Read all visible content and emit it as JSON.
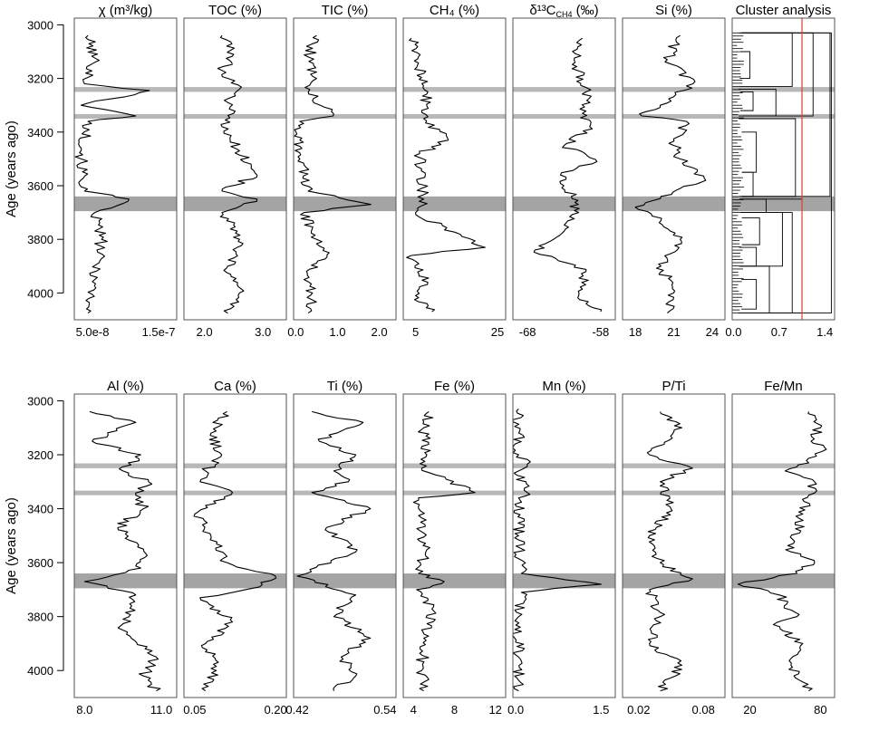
{
  "figure": {
    "ylabel": "Age (years ago)",
    "y_ticks": [
      3000,
      3200,
      3400,
      3600,
      3800,
      4000
    ],
    "ylim": [
      2975,
      4100
    ],
    "y_reversed": true,
    "highlight_bands": [
      {
        "from": 3232,
        "to": 3250,
        "color": "#b8b8b8"
      },
      {
        "from": 3333,
        "to": 3350,
        "color": "#b8b8b8"
      },
      {
        "from": 3640,
        "to": 3695,
        "color": "#a4a4a4"
      }
    ],
    "line_color": "#000000",
    "cluster_cut_color": "#e03c31"
  },
  "chart_data": [
    {
      "type": "line",
      "title": "χ (m³/kg)",
      "tick_labels": [
        "5.0e-8",
        "1.5e-7"
      ],
      "xlim": [
        4e-08,
        1.9e-07
      ],
      "series": [
        {
          "x": [
            6e-08,
            7e-08,
            5.5e-08,
            1.5e-07,
            5e-08,
            1.3e-07,
            6e-08,
            5e-08,
            5.5e-08,
            1.2e-07,
            7e-08,
            8e-08,
            7e-08,
            6e-08
          ],
          "y": [
            3040,
            3140,
            3220,
            3245,
            3300,
            3340,
            3360,
            3500,
            3620,
            3650,
            3700,
            3800,
            3950,
            4075
          ]
        }
      ]
    },
    {
      "type": "line",
      "title": "TOC (%)",
      "tick_labels": [
        "2.0",
        "3.0"
      ],
      "tick_values": [
        2.0,
        3.0
      ],
      "xlim": [
        1.65,
        3.4
      ],
      "series": [
        {
          "x": [
            2.3,
            2.5,
            2.3,
            2.6,
            2.4,
            2.5,
            2.3,
            2.6,
            2.9,
            2.3,
            2.9,
            2.3,
            2.6,
            2.4,
            2.6,
            2.4
          ],
          "y": [
            3040,
            3110,
            3170,
            3240,
            3290,
            3330,
            3380,
            3470,
            3560,
            3620,
            3650,
            3700,
            3800,
            3900,
            4000,
            4075
          ]
        }
      ]
    },
    {
      "type": "line",
      "title": "TIC (%)",
      "tick_labels": [
        "0.0",
        "1.0",
        "2.0"
      ],
      "tick_values": [
        0.0,
        1.0,
        2.0
      ],
      "xlim": [
        -0.05,
        2.4
      ],
      "series": [
        {
          "x": [
            0.5,
            0.3,
            0.5,
            0.3,
            0.9,
            0.1,
            0.1,
            0.3,
            1.8,
            0.2,
            0.5,
            0.8,
            0.2,
            0.4,
            0.3
          ],
          "y": [
            3040,
            3120,
            3200,
            3250,
            3340,
            3360,
            3500,
            3620,
            3670,
            3700,
            3800,
            3850,
            3950,
            4000,
            4075
          ]
        }
      ]
    },
    {
      "type": "line",
      "title": "CH₄ (%)",
      "tick_labels": [
        "5",
        "25"
      ],
      "tick_values": [
        5,
        25
      ],
      "xlim": [
        2,
        27
      ],
      "series": [
        {
          "x": [
            4,
            5.5,
            8,
            7,
            13,
            6,
            7,
            5,
            22,
            4,
            8,
            5,
            9
          ],
          "y": [
            3050,
            3150,
            3250,
            3350,
            3430,
            3480,
            3650,
            3700,
            3830,
            3860,
            3960,
            4010,
            4070
          ]
        }
      ]
    },
    {
      "type": "line",
      "title": "δ¹³C",
      "title_subscript": "CH4",
      "title_suffix": " (‰)",
      "tick_labels": [
        "-68",
        "-58"
      ],
      "tick_values": [
        -68,
        -58
      ],
      "xlim": [
        -70,
        -56
      ],
      "series": [
        {
          "x": [
            -60.5,
            -61.5,
            -60,
            -60.5,
            -59.5,
            -63,
            -58.5,
            -63.5,
            -62,
            -61,
            -63,
            -67,
            -60,
            -61,
            -58
          ],
          "y": [
            3050,
            3140,
            3250,
            3330,
            3380,
            3450,
            3510,
            3560,
            3640,
            3700,
            3770,
            3840,
            3920,
            4010,
            4070
          ]
        }
      ]
    },
    {
      "type": "line",
      "title": "Si (%)",
      "tick_labels": [
        "18",
        "21",
        "24"
      ],
      "tick_values": [
        18,
        21,
        24
      ],
      "xlim": [
        17,
        25
      ],
      "series": [
        {
          "x": [
            21.5,
            20.5,
            22.5,
            18.5,
            22,
            21,
            21.5,
            23.5,
            20,
            18,
            20,
            21.5,
            20,
            21,
            20.5
          ],
          "y": [
            3040,
            3130,
            3220,
            3340,
            3360,
            3450,
            3500,
            3580,
            3640,
            3680,
            3730,
            3800,
            3900,
            4000,
            4075
          ]
        }
      ]
    },
    {
      "type": "dendrogram",
      "title": "Cluster analysis",
      "tick_labels": [
        "0.0",
        "0.7",
        "1.4"
      ],
      "tick_values": [
        0.0,
        0.7,
        1.4
      ],
      "xlim": [
        -0.02,
        1.55
      ],
      "cut_height": 1.05,
      "leaves": 90
    },
    {
      "type": "line",
      "title": "Al (%)",
      "tick_labels": [
        "8.0",
        "11.0"
      ],
      "tick_values": [
        8.0,
        11.0
      ],
      "xlim": [
        7.6,
        11.6
      ],
      "series": [
        {
          "x": [
            8.2,
            10,
            8.3,
            10.2,
            9.5,
            10.5,
            10,
            10.3,
            9.3,
            10.3,
            10.2,
            8.0,
            10,
            9.5,
            10.8,
            10.3,
            10.8
          ],
          "y": [
            3040,
            3080,
            3150,
            3200,
            3260,
            3300,
            3350,
            3400,
            3470,
            3550,
            3620,
            3670,
            3720,
            3850,
            3950,
            4020,
            4075
          ]
        }
      ]
    },
    {
      "type": "line",
      "title": "Ca (%)",
      "tick_labels": [
        "0.05",
        "0.20"
      ],
      "tick_values": [
        0.05,
        0.2
      ],
      "xlim": [
        0.03,
        0.22
      ],
      "series": [
        {
          "x": [
            0.11,
            0.08,
            0.1,
            0.07,
            0.06,
            0.12,
            0.05,
            0.08,
            0.11,
            0.2,
            0.17,
            0.06,
            0.12,
            0.07,
            0.09,
            0.07
          ],
          "y": [
            3040,
            3120,
            3200,
            3260,
            3300,
            3340,
            3420,
            3500,
            3600,
            3650,
            3690,
            3730,
            3820,
            3900,
            4000,
            4075
          ]
        }
      ]
    },
    {
      "type": "line",
      "title": "Ti (%)",
      "tick_labels": [
        "0.42",
        "0.54"
      ],
      "tick_values": [
        0.42,
        0.54
      ],
      "xlim": [
        0.415,
        0.555
      ],
      "series": [
        {
          "x": [
            0.44,
            0.51,
            0.45,
            0.5,
            0.47,
            0.49,
            0.44,
            0.52,
            0.46,
            0.5,
            0.42,
            0.5,
            0.47,
            0.52,
            0.48,
            0.5,
            0.47
          ],
          "y": [
            3040,
            3080,
            3150,
            3200,
            3260,
            3300,
            3340,
            3400,
            3470,
            3560,
            3650,
            3720,
            3800,
            3880,
            3950,
            4020,
            4075
          ]
        }
      ]
    },
    {
      "type": "line",
      "title": "Fe (%)",
      "tick_labels": [
        "4",
        "8",
        "12"
      ],
      "tick_values": [
        4,
        8,
        12
      ],
      "xlim": [
        3,
        13
      ],
      "series": [
        {
          "x": [
            5.5,
            5,
            5.3,
            4.8,
            10,
            4.5,
            4.7,
            5.2,
            4.5,
            7,
            4.3,
            6,
            5,
            4.8,
            5
          ],
          "y": [
            3040,
            3100,
            3200,
            3250,
            3340,
            3360,
            3450,
            3560,
            3640,
            3670,
            3700,
            3780,
            3880,
            4000,
            4075
          ]
        }
      ]
    },
    {
      "type": "line",
      "title": "Mn (%)",
      "tick_labels": [
        "0.0",
        "1.5"
      ],
      "tick_values": [
        0.0,
        1.5
      ],
      "xlim": [
        -0.05,
        1.75
      ],
      "series": [
        {
          "x": [
            0.05,
            0.05,
            0.2,
            0.05,
            0.2,
            0.05,
            0.05,
            0.1,
            1.5,
            0.1,
            0.05,
            0.05,
            0.05
          ],
          "y": [
            3030,
            3200,
            3235,
            3260,
            3340,
            3360,
            3500,
            3640,
            3680,
            3710,
            3800,
            3950,
            4075
          ]
        }
      ]
    },
    {
      "type": "line",
      "title": "P/Ti",
      "tick_labels": [
        "0.02",
        "0.08"
      ],
      "tick_values": [
        0.02,
        0.08
      ],
      "xlim": [
        0.005,
        0.1
      ],
      "series": [
        {
          "x": [
            0.04,
            0.06,
            0.03,
            0.07,
            0.04,
            0.05,
            0.03,
            0.04,
            0.07,
            0.03,
            0.04,
            0.03,
            0.06,
            0.04
          ],
          "y": [
            3040,
            3100,
            3200,
            3250,
            3300,
            3400,
            3500,
            3600,
            3660,
            3700,
            3800,
            3900,
            3980,
            4075
          ]
        }
      ]
    },
    {
      "type": "line",
      "title": "Fe/Mn",
      "tick_labels": [
        "20",
        "80"
      ],
      "tick_values": [
        20,
        80
      ],
      "xlim": [
        5,
        92
      ],
      "series": [
        {
          "x": [
            70,
            80,
            72,
            85,
            70,
            50,
            75,
            70,
            65,
            55,
            75,
            60,
            10,
            45,
            60,
            40,
            65,
            55,
            70
          ],
          "y": [
            3040,
            3100,
            3150,
            3180,
            3230,
            3260,
            3300,
            3350,
            3420,
            3560,
            3600,
            3640,
            3680,
            3720,
            3800,
            3830,
            3900,
            3980,
            4075
          ]
        }
      ]
    }
  ]
}
